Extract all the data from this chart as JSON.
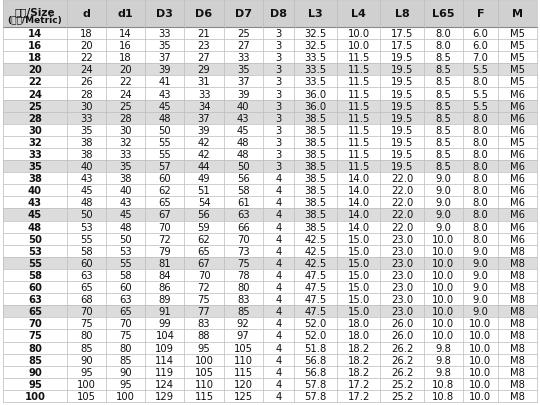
{
  "title_line1": "规格/Size",
  "title_line2": "(公制/Metric)",
  "columns": [
    "d",
    "d1",
    "D3",
    "D6",
    "D7",
    "D8",
    "L3",
    "L4",
    "L8",
    "L65",
    "F",
    "M"
  ],
  "rows": [
    [
      14,
      18,
      14,
      33,
      21,
      25,
      3,
      "32.5",
      "10.0",
      "17.5",
      "8.0",
      "6.0",
      "M5"
    ],
    [
      16,
      20,
      16,
      35,
      23,
      27,
      3,
      "32.5",
      "10.0",
      "17.5",
      "8.0",
      "6.0",
      "M5"
    ],
    [
      18,
      22,
      18,
      37,
      27,
      33,
      3,
      "33.5",
      "11.5",
      "19.5",
      "8.5",
      "7.0",
      "M5"
    ],
    [
      20,
      24,
      20,
      39,
      29,
      35,
      3,
      "33.5",
      "11.5",
      "19.5",
      "8.5",
      "5.5",
      "M5"
    ],
    [
      22,
      26,
      22,
      41,
      31,
      37,
      3,
      "33.5",
      "11.5",
      "19.5",
      "8.5",
      "8.0",
      "M5"
    ],
    [
      24,
      28,
      24,
      43,
      33,
      39,
      3,
      "36.0",
      "11.5",
      "19.5",
      "8.5",
      "5.5",
      "M6"
    ],
    [
      25,
      30,
      25,
      45,
      34,
      40,
      3,
      "36.0",
      "11.5",
      "19.5",
      "8.5",
      "5.5",
      "M6"
    ],
    [
      28,
      33,
      28,
      48,
      37,
      43,
      3,
      "38.5",
      "11.5",
      "19.5",
      "8.5",
      "8.0",
      "M6"
    ],
    [
      30,
      35,
      30,
      50,
      39,
      45,
      3,
      "38.5",
      "11.5",
      "19.5",
      "8.5",
      "8.0",
      "M6"
    ],
    [
      32,
      38,
      32,
      55,
      42,
      48,
      3,
      "38.5",
      "11.5",
      "19.5",
      "8.5",
      "8.0",
      "M5"
    ],
    [
      33,
      38,
      33,
      55,
      42,
      48,
      3,
      "38.5",
      "11.5",
      "19.5",
      "8.5",
      "8.0",
      "M6"
    ],
    [
      35,
      40,
      35,
      57,
      44,
      50,
      3,
      "38.5",
      "11.5",
      "19.5",
      "8.5",
      "8.0",
      "M6"
    ],
    [
      38,
      43,
      38,
      60,
      49,
      56,
      4,
      "38.5",
      "14.0",
      "22.0",
      "9.0",
      "8.0",
      "M6"
    ],
    [
      40,
      45,
      40,
      62,
      51,
      58,
      4,
      "38.5",
      "14.0",
      "22.0",
      "9.0",
      "8.0",
      "M6"
    ],
    [
      43,
      48,
      43,
      65,
      54,
      61,
      4,
      "38.5",
      "14.0",
      "22.0",
      "9.0",
      "8.0",
      "M6"
    ],
    [
      45,
      50,
      45,
      67,
      56,
      63,
      4,
      "38.5",
      "14.0",
      "22.0",
      "9.0",
      "8.0",
      "M6"
    ],
    [
      48,
      53,
      48,
      70,
      59,
      66,
      4,
      "38.5",
      "14.0",
      "22.0",
      "9.0",
      "8.0",
      "M6"
    ],
    [
      50,
      55,
      50,
      72,
      62,
      70,
      4,
      "42.5",
      "15.0",
      "23.0",
      "10.0",
      "8.0",
      "M6"
    ],
    [
      53,
      58,
      53,
      79,
      65,
      73,
      4,
      "42.5",
      "15.0",
      "23.0",
      "10.0",
      "9.0",
      "M8"
    ],
    [
      55,
      60,
      55,
      81,
      67,
      75,
      4,
      "42.5",
      "15.0",
      "23.0",
      "10.0",
      "9.0",
      "M8"
    ],
    [
      58,
      63,
      58,
      84,
      70,
      78,
      4,
      "47.5",
      "15.0",
      "23.0",
      "10.0",
      "9.0",
      "M8"
    ],
    [
      60,
      65,
      60,
      86,
      72,
      80,
      4,
      "47.5",
      "15.0",
      "23.0",
      "10.0",
      "9.0",
      "M8"
    ],
    [
      63,
      68,
      63,
      89,
      75,
      83,
      4,
      "47.5",
      "15.0",
      "23.0",
      "10.0",
      "9.0",
      "M8"
    ],
    [
      65,
      70,
      65,
      91,
      77,
      85,
      4,
      "47.5",
      "15.0",
      "23.0",
      "10.0",
      "9.0",
      "M8"
    ],
    [
      70,
      75,
      70,
      99,
      83,
      92,
      4,
      "52.0",
      "18.0",
      "26.0",
      "10.0",
      "10.0",
      "M8"
    ],
    [
      75,
      80,
      75,
      104,
      88,
      97,
      4,
      "52.0",
      "18.0",
      "26.0",
      "10.0",
      "10.0",
      "M8"
    ],
    [
      80,
      85,
      80,
      109,
      95,
      105,
      4,
      "51.8",
      "18.2",
      "26.2",
      "9.8",
      "10.0",
      "M8"
    ],
    [
      85,
      90,
      85,
      114,
      100,
      110,
      4,
      "56.8",
      "18.2",
      "26.2",
      "9.8",
      "10.0",
      "M8"
    ],
    [
      90,
      95,
      90,
      119,
      105,
      115,
      4,
      "56.8",
      "18.2",
      "26.2",
      "9.8",
      "10.0",
      "M8"
    ],
    [
      95,
      100,
      95,
      124,
      110,
      120,
      4,
      "57.8",
      "17.2",
      "25.2",
      "10.8",
      "10.0",
      "M8"
    ],
    [
      100,
      105,
      100,
      129,
      115,
      125,
      4,
      "57.8",
      "17.2",
      "25.2",
      "10.8",
      "10.0",
      "M8"
    ]
  ],
  "shaded_rows": [
    3,
    6,
    7,
    11,
    15,
    19,
    23
  ],
  "header_bg": "#d0d0d0",
  "row_bg_light": "#ffffff",
  "row_bg_shaded": "#dcdcdc",
  "text_color": "#111111",
  "line_color": "#bbbbbb",
  "font_size": 7.2,
  "header_font_size": 8.0
}
